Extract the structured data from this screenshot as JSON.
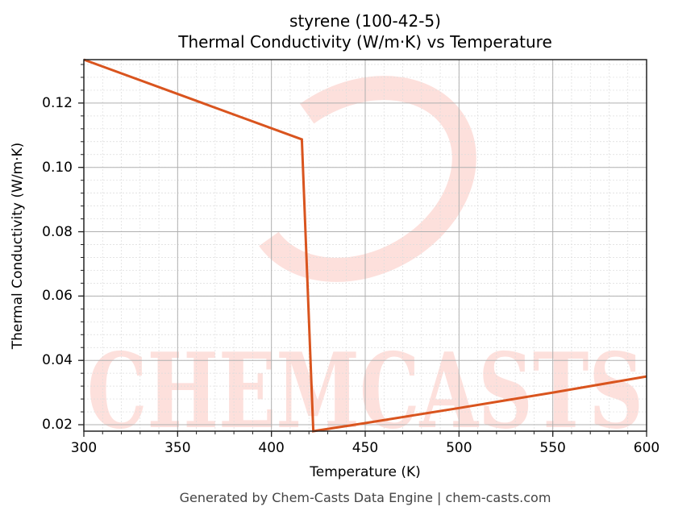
{
  "chart_data": {
    "type": "line",
    "title": "styrene (100-42-5)",
    "subtitle": "Thermal Conductivity (W/m·K) vs Temperature",
    "xlabel": "Temperature (K)",
    "ylabel": "Thermal Conductivity (W/m·K)",
    "xlim": [
      300,
      600
    ],
    "ylim": [
      0.018,
      0.1335
    ],
    "xticks": [
      300,
      350,
      400,
      450,
      500,
      550,
      600
    ],
    "xtick_labels": [
      "300",
      "350",
      "400",
      "450",
      "500",
      "550",
      "600"
    ],
    "yticks": [
      0.02,
      0.04,
      0.06,
      0.08,
      0.1,
      0.12
    ],
    "ytick_labels": [
      "0.02",
      "0.04",
      "0.06",
      "0.08",
      "0.10",
      "0.12"
    ],
    "x_minor_step": 10,
    "y_minor_step": 0.004,
    "grid": true,
    "legend": null,
    "series": [
      {
        "name": "Thermal Conductivity",
        "color": "#d9541e",
        "x": [
          300,
          416.2,
          422.3,
          450,
          500,
          550,
          600
        ],
        "y": [
          0.1335,
          0.1087,
          0.018,
          0.0205,
          0.0252,
          0.03,
          0.035
        ]
      }
    ],
    "watermark": "CHEMCASTS"
  },
  "footer": "Generated by Chem-Casts Data Engine | chem-casts.com",
  "colors": {
    "line": "#d9541e",
    "watermark": "#fde0dc",
    "grid_major": "#b0b0b0",
    "grid_minor": "#dcdcdc",
    "axis": "#222222"
  }
}
